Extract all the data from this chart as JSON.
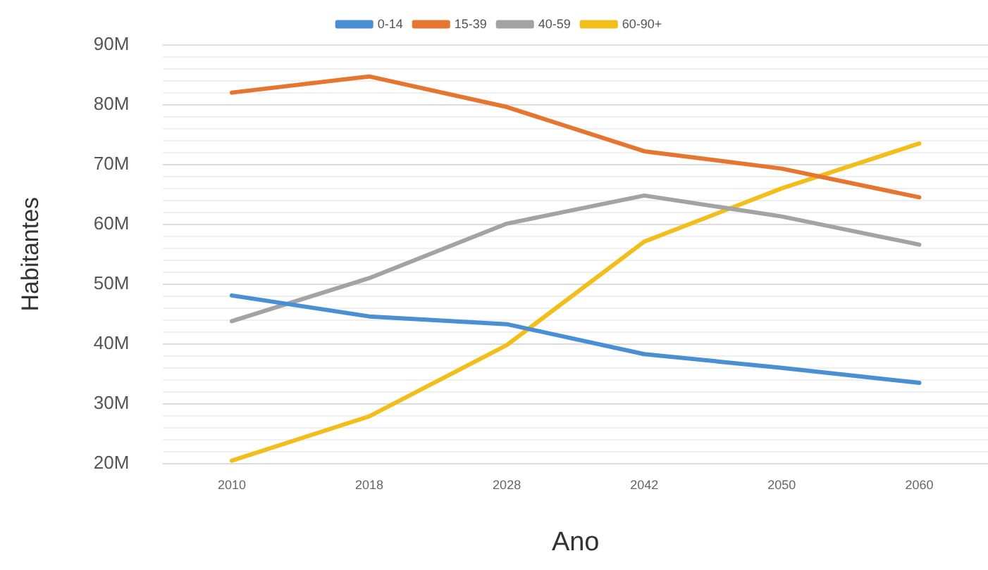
{
  "chart_data": {
    "type": "line",
    "xlabel": "Ano",
    "ylabel": "Habitantes",
    "categories": [
      "2010",
      "2018",
      "2028",
      "2042",
      "2050",
      "2060"
    ],
    "series": [
      {
        "name": "0-14",
        "color": "#4a8fd4",
        "values": [
          48.1,
          44.6,
          43.3,
          38.3,
          36,
          33.5
        ]
      },
      {
        "name": "15-39",
        "color": "#e5752f",
        "values": [
          82,
          84.7,
          79.6,
          72.2,
          69.3,
          64.5
        ]
      },
      {
        "name": "40-59",
        "color": "#a3a3a3",
        "values": [
          43.8,
          51,
          60.1,
          64.8,
          61.3,
          56.6
        ]
      },
      {
        "name": "60-90+",
        "color": "#f2be1c",
        "values": [
          20.5,
          27.9,
          39.8,
          57.1,
          66,
          73.5
        ]
      }
    ],
    "ylim": [
      20,
      90
    ],
    "yticks": [
      {
        "value": 20,
        "label": "20M"
      },
      {
        "value": 22,
        "label": null
      },
      {
        "value": 24,
        "label": null
      },
      {
        "value": 26,
        "label": null
      },
      {
        "value": 28,
        "label": null
      },
      {
        "value": 30,
        "label": "30M"
      },
      {
        "value": 32,
        "label": null
      },
      {
        "value": 34,
        "label": null
      },
      {
        "value": 36,
        "label": null
      },
      {
        "value": 38,
        "label": null
      },
      {
        "value": 40,
        "label": "40M"
      },
      {
        "value": 42,
        "label": null
      },
      {
        "value": 44,
        "label": null
      },
      {
        "value": 46,
        "label": null
      },
      {
        "value": 48,
        "label": null
      },
      {
        "value": 50,
        "label": "50M"
      },
      {
        "value": 52,
        "label": null
      },
      {
        "value": 54,
        "label": null
      },
      {
        "value": 56,
        "label": null
      },
      {
        "value": 58,
        "label": null
      },
      {
        "value": 60,
        "label": "60M"
      },
      {
        "value": 62,
        "label": null
      },
      {
        "value": 64,
        "label": null
      },
      {
        "value": 66,
        "label": null
      },
      {
        "value": 68,
        "label": null
      },
      {
        "value": 70,
        "label": "70M"
      },
      {
        "value": 72,
        "label": null
      },
      {
        "value": 74,
        "label": null
      },
      {
        "value": 76,
        "label": null
      },
      {
        "value": 78,
        "label": null
      },
      {
        "value": 80,
        "label": "80M"
      },
      {
        "value": 82,
        "label": null
      },
      {
        "value": 84,
        "label": null
      },
      {
        "value": 86,
        "label": null
      },
      {
        "value": 88,
        "label": null
      },
      {
        "value": 90,
        "label": "90M"
      }
    ],
    "grid": "y",
    "legend": "top",
    "marker": "none",
    "line_style": "solid"
  }
}
